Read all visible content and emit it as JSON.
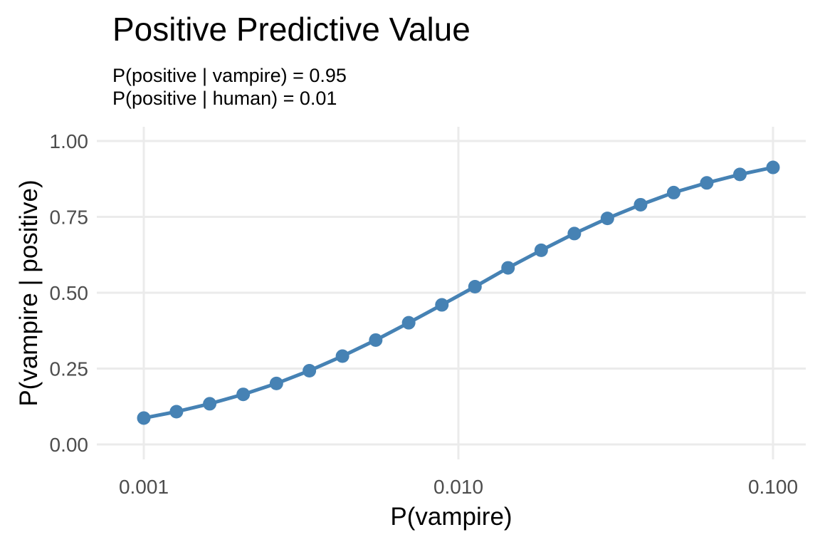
{
  "chart_data": {
    "type": "line",
    "title": "Positive Predictive Value",
    "subtitle_lines": [
      "P(positive | vampire) = 0.95",
      "P(positive | human) = 0.01"
    ],
    "xlabel": "P(vampire)",
    "ylabel": "P(vampire | positive)",
    "x_scale": "log10",
    "xlim": [
      0.001,
      0.1
    ],
    "ylim": [
      0,
      1
    ],
    "x_ticks": [
      0.001,
      0.01,
      0.1
    ],
    "x_tick_labels": [
      "0.001",
      "0.010",
      "0.100"
    ],
    "y_ticks": [
      0,
      0.25,
      0.5,
      0.75,
      1
    ],
    "y_tick_labels": [
      "0.00",
      "0.25",
      "0.50",
      "0.75",
      "1.00"
    ],
    "grid": true,
    "legend": "none",
    "series": [
      {
        "color": "#4682B4",
        "markers": true,
        "x": [
          0.001,
          0.00127,
          0.00162,
          0.00207,
          0.00264,
          0.00336,
          0.00428,
          0.00546,
          0.00695,
          0.00886,
          0.01129,
          0.01438,
          0.01833,
          0.02336,
          0.02976,
          0.03793,
          0.04833,
          0.06158,
          0.07848,
          0.1
        ],
        "y": [
          0.087,
          0.108,
          0.134,
          0.165,
          0.201,
          0.243,
          0.291,
          0.344,
          0.401,
          0.46,
          0.52,
          0.582,
          0.64,
          0.695,
          0.745,
          0.79,
          0.83,
          0.862,
          0.89,
          0.913
        ]
      }
    ]
  }
}
